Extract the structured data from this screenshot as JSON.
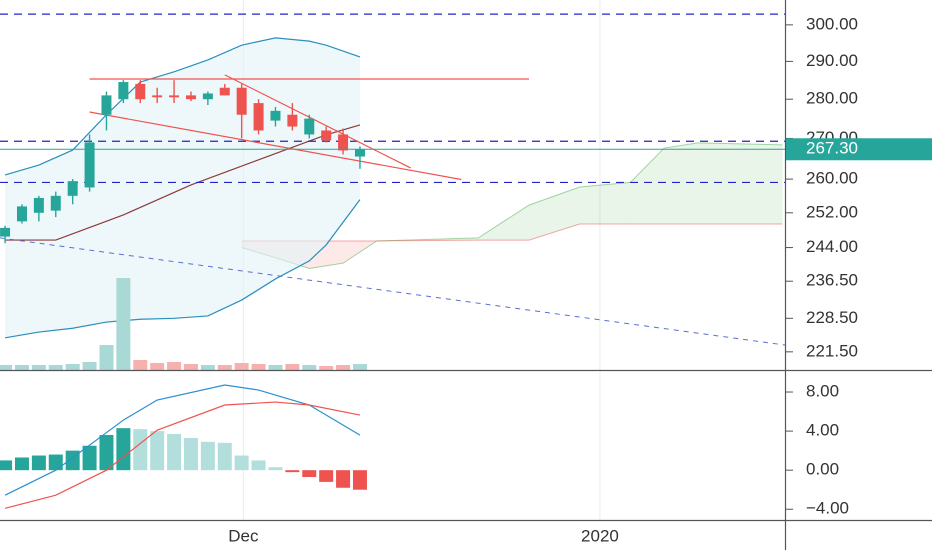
{
  "chart_data": [
    {
      "type": "candlestick",
      "log_scale": true,
      "x": [
        0,
        1,
        2,
        3,
        4,
        5,
        6,
        7,
        8,
        9,
        10,
        11,
        12,
        13,
        14,
        15,
        16,
        17,
        18,
        19,
        20,
        21
      ],
      "open": [
        246.5,
        250,
        252,
        252.5,
        256,
        258,
        276,
        280,
        284,
        281,
        281,
        281,
        280,
        283,
        283,
        279,
        274.5,
        276,
        271,
        272,
        271,
        265.5
      ],
      "high": [
        249,
        254,
        256,
        257,
        260,
        271,
        282,
        285,
        285,
        283,
        285,
        282,
        282,
        284,
        284,
        280,
        278,
        279,
        276,
        273,
        272.5,
        268
      ],
      "low": [
        245,
        249.5,
        250,
        251,
        254,
        257,
        272,
        279,
        279,
        279,
        279,
        279.5,
        278.5,
        281,
        270,
        271,
        273,
        272,
        270,
        269,
        266,
        262.5
      ],
      "close": [
        248.5,
        253.5,
        255.5,
        256,
        259.5,
        269,
        281,
        284.5,
        280,
        280.5,
        280.5,
        280,
        281.5,
        281,
        276,
        272,
        277,
        273,
        275,
        269.5,
        267,
        267.3
      ],
      "up_color": "#26a69a",
      "down_color": "#ef5350",
      "volume": [
        5,
        5,
        5,
        5,
        6,
        8,
        25,
        92,
        10,
        7,
        8,
        6,
        5,
        5,
        7,
        6,
        5,
        6,
        5,
        4,
        5,
        6
      ],
      "volume_ylim": [
        0,
        370
      ],
      "volume_up_color": "#a8d9d4",
      "volume_down_color": "#f6b1af",
      "xlim": [
        -0.3,
        46.15
      ],
      "xticks": [
        {
          "value": 14.1,
          "label": "Dec"
        },
        {
          "value": 35.2,
          "label": "2020"
        }
      ],
      "ylim": [
        217.8,
        307.0
      ],
      "yticks": [
        {
          "value": 300,
          "label": "300.00"
        },
        {
          "value": 290,
          "label": "290.00"
        },
        {
          "value": 280,
          "label": "280.00"
        },
        {
          "value": 270,
          "label": "270.00"
        },
        {
          "value": 260,
          "label": "260.00"
        },
        {
          "value": 252,
          "label": "252.00"
        },
        {
          "value": 244,
          "label": "244.00"
        },
        {
          "value": 236.5,
          "label": "236.50"
        },
        {
          "value": 228.5,
          "label": "228.50"
        },
        {
          "value": 221.5,
          "label": "221.50"
        }
      ],
      "grid": true,
      "band": {
        "x": [
          0,
          2,
          4,
          6,
          8,
          10,
          12,
          14,
          16,
          18,
          19,
          21
        ],
        "upper": [
          261.0,
          263.4,
          267.1,
          276.0,
          284.5,
          287.2,
          290.4,
          294.4,
          296.4,
          295.5,
          294.4,
          291.2
        ],
        "lower": [
          224.4,
          225.6,
          226.4,
          227.7,
          228.3,
          228.5,
          229.0,
          232.4,
          237.0,
          241.0,
          244.6,
          255.1
        ],
        "color": "#2a8fbd",
        "fill": "#e3f4f7"
      },
      "overlays": [
        {
          "x": [
            0,
            3,
            7,
            11,
            15,
            19,
            21
          ],
          "values": [
            245.7,
            245.7,
            251.5,
            258.6,
            264.7,
            270.9,
            273.4
          ],
          "color": "#8e3a3a"
        }
      ],
      "cloud": {
        "x": [
          14,
          16,
          18,
          20,
          22,
          28,
          31,
          34,
          37,
          39,
          41,
          46
        ],
        "span_a": [
          244,
          241.7,
          239.3,
          240.5,
          245.5,
          246.2,
          253.8,
          258.1,
          259.2,
          267.6,
          268.9,
          268.4
        ],
        "span_b": [
          245.5,
          245.5,
          245.5,
          245.5,
          245.5,
          245.7,
          245.7,
          249.4,
          249.4,
          249.4,
          249.4,
          249.4
        ],
        "up_color": "#4caf50",
        "down_color": "#ef5350"
      },
      "levels": [
        303.0,
        269.3,
        259.2
      ],
      "level_color": "#2323c8",
      "trendlines": [
        {
          "x1": 13,
          "y1": 286.4,
          "x2": 24,
          "y2": 262.7,
          "color": "#ef5350",
          "dashed": false
        },
        {
          "x1": 5,
          "y1": 276.7,
          "x2": 27,
          "y2": 259.9,
          "color": "#ef5350",
          "dashed": false
        },
        {
          "x1": 5,
          "y1": 285.3,
          "x2": 31,
          "y2": 285.3,
          "color": "#ef5350",
          "dashed": false
        },
        {
          "x1": -0.3,
          "y1": 246.2,
          "x2": 46.15,
          "y2": 222.9,
          "color": "#5a6fd0",
          "dashed": true
        }
      ],
      "last_price": {
        "value": 267.3,
        "label": "267.30"
      },
      "last_price_color": "#26a69a"
    },
    {
      "type": "macd",
      "x": [
        0,
        1,
        2,
        3,
        4,
        5,
        6,
        7,
        8,
        9,
        10,
        11,
        12,
        13,
        14,
        15,
        16,
        17,
        18,
        19,
        20,
        21
      ],
      "values": [
        1.0,
        1.3,
        1.5,
        1.6,
        2.0,
        2.5,
        3.6,
        4.3,
        4.2,
        4.0,
        3.7,
        3.3,
        2.9,
        2.8,
        1.5,
        1.0,
        0.3,
        -0.2,
        -0.7,
        -1.2,
        -1.8,
        -2.0
      ],
      "colors": [
        "#26a69a",
        "#26a69a",
        "#26a69a",
        "#26a69a",
        "#26a69a",
        "#26a69a",
        "#26a69a",
        "#26a69a",
        "#b2dfdb",
        "#b2dfdb",
        "#b2dfdb",
        "#b2dfdb",
        "#b2dfdb",
        "#b2dfdb",
        "#b2dfdb",
        "#b2dfdb",
        "#b2dfdb",
        "#ef5350",
        "#ef5350",
        "#ef5350",
        "#ef5350",
        "#ef5350"
      ],
      "ylim": [
        -5.1,
        10.05
      ],
      "yticks": [
        {
          "value": 8,
          "label": "8.00"
        },
        {
          "value": 4,
          "label": "4.00"
        },
        {
          "value": 0,
          "label": "0.00"
        },
        {
          "value": -4,
          "label": "−4.00"
        }
      ],
      "series": [
        {
          "x": [
            0,
            3,
            7,
            9,
            13,
            15,
            18,
            21
          ],
          "values": [
            -2.56,
            0,
            5.13,
            7.18,
            8.72,
            8.2,
            6.67,
            3.59
          ],
          "color": "#2a8fd0"
        },
        {
          "x": [
            0,
            3,
            6,
            9,
            13,
            16,
            18,
            21
          ],
          "values": [
            -3.9,
            -2.56,
            0,
            4.1,
            6.67,
            6.97,
            6.67,
            5.64
          ],
          "color": "#ef5350"
        }
      ]
    }
  ]
}
